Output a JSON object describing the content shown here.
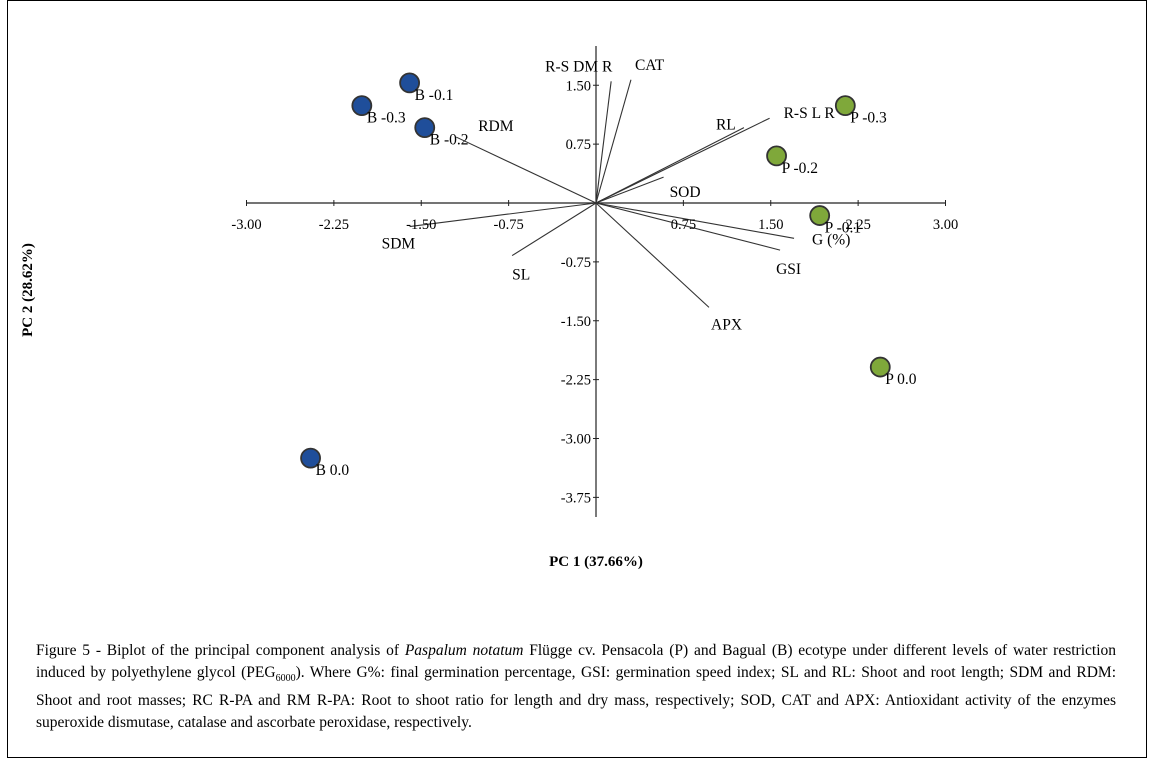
{
  "chart_data": {
    "type": "scatter",
    "subtype": "pca-biplot",
    "xlabel": "PC 1 (37.66%)",
    "ylabel": "PC 2 (28.62%)",
    "xlim": [
      -3.0,
      3.0
    ],
    "ylim": [
      -4.0,
      2.0
    ],
    "x_ticks": [
      -3.0,
      -2.25,
      -1.5,
      -0.75,
      0.75,
      1.5,
      2.25,
      3.0
    ],
    "x_tick_labels": [
      "-3.00",
      "-2.25",
      "-1.50",
      "-0.75",
      "0.75",
      "1.50",
      "2.25",
      "3.00"
    ],
    "y_ticks": [
      1.5,
      0.75,
      -0.75,
      -1.5,
      -2.25,
      -3.0,
      -3.75
    ],
    "y_tick_labels": [
      "1.50",
      "0.75",
      "-0.75",
      "-1.50",
      "-2.25",
      "-3.00",
      "-3.75"
    ],
    "grid": false,
    "series": [
      {
        "color": "#1f4e9a",
        "points": [
          {
            "label": "B -0.3",
            "x": -2.01,
            "y": 1.24
          },
          {
            "label": "B -0.1",
            "x": -1.6,
            "y": 1.53
          },
          {
            "label": "B -0.2",
            "x": -1.47,
            "y": 0.96
          },
          {
            "label": "B 0.0",
            "x": -2.45,
            "y": -3.25
          }
        ]
      },
      {
        "color": "#7fa83a",
        "points": [
          {
            "label": "P -0.3",
            "x": 2.14,
            "y": 1.24
          },
          {
            "label": "P -0.2",
            "x": 1.55,
            "y": 0.6
          },
          {
            "label": "P -0.1",
            "x": 1.92,
            "y": -0.16
          },
          {
            "label": "P 0.0",
            "x": 2.44,
            "y": -2.09
          }
        ]
      }
    ],
    "loadings": [
      {
        "label": "R-S DM R",
        "x": 0.13,
        "y": 1.55
      },
      {
        "label": "CAT",
        "x": 0.3,
        "y": 1.57
      },
      {
        "label": "RL",
        "x": 1.27,
        "y": 0.96
      },
      {
        "label": "R-S L R",
        "x": 1.49,
        "y": 1.08
      },
      {
        "label": "SOD",
        "x": 0.58,
        "y": 0.33
      },
      {
        "label": "RDM",
        "x": -1.2,
        "y": 0.84
      },
      {
        "label": "SDM",
        "x": -1.6,
        "y": -0.3
      },
      {
        "label": "SL",
        "x": -0.72,
        "y": -0.67
      },
      {
        "label": "APX",
        "x": 0.97,
        "y": -1.33
      },
      {
        "label": "GSI",
        "x": 1.58,
        "y": -0.6
      },
      {
        "label": "G (%)",
        "x": 1.7,
        "y": -0.45
      }
    ]
  },
  "caption": {
    "prefix": "Figure 5 - Biplot of the principal component analysis of ",
    "species": "Paspalum notatum",
    "after_species": " Flügge cv. Pensacola (P) and Bagual (B) ecotype under different levels of water restriction induced by polyethylene glycol (PEG",
    "subscript": "6000",
    "suffix": "). Where G%: final germination percentage, GSI: germination speed index; SL and RL: Shoot and root length; SDM and RDM: Shoot and root masses; RC R-PA and RM R-PA: Root to shoot ratio for length and dry mass, respectively; SOD, CAT and APX: Antioxidant activity of the enzymes superoxide dismutase, catalase and ascorbate peroxidase, respectively."
  }
}
